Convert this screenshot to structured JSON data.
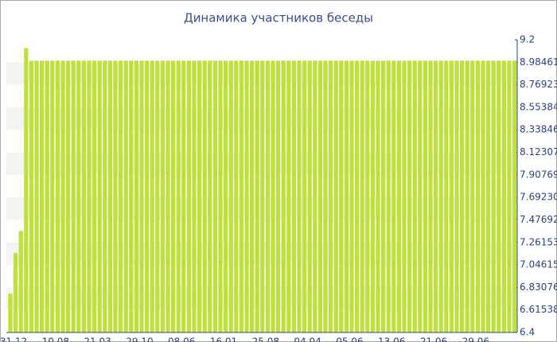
{
  "chart_data": {
    "type": "bar",
    "title": "Динамика участников беседы",
    "categories": [
      "31.12",
      null,
      null,
      null,
      null,
      null,
      null,
      null,
      "10.08",
      null,
      null,
      null,
      null,
      null,
      null,
      null,
      "21.03",
      null,
      null,
      null,
      null,
      null,
      null,
      null,
      "29.10",
      null,
      null,
      null,
      null,
      null,
      null,
      null,
      "08.06",
      null,
      null,
      null,
      null,
      null,
      null,
      null,
      "16.01",
      null,
      null,
      null,
      null,
      null,
      null,
      null,
      "25.08",
      null,
      null,
      null,
      null,
      null,
      null,
      null,
      "04.04",
      null,
      null,
      null,
      null,
      null,
      null,
      null,
      "05.06",
      null,
      null,
      null,
      null,
      null,
      null,
      null,
      "13.06",
      null,
      null,
      null,
      null,
      null,
      null,
      null,
      "21.06",
      null,
      null,
      null,
      null,
      null,
      null,
      null,
      "29.06",
      null,
      null,
      null,
      null,
      null,
      null,
      null,
      null
    ],
    "values": [
      6.77,
      7.16,
      7.37,
      9.12,
      9,
      9,
      9,
      9,
      9,
      9,
      9,
      9,
      9,
      9,
      9,
      9,
      9,
      9,
      9,
      9,
      9,
      9,
      9,
      9,
      9,
      9,
      9,
      9,
      9,
      9,
      9,
      9,
      9,
      9,
      9,
      9,
      9,
      9,
      9,
      9,
      9,
      9,
      9,
      9,
      9,
      9,
      9,
      9,
      9,
      9,
      9,
      9,
      9,
      9,
      9,
      9,
      9,
      9,
      9,
      9,
      9,
      9,
      9,
      9,
      9,
      9,
      9,
      9,
      9,
      9,
      9,
      9,
      9,
      9,
      9,
      9,
      9,
      9,
      9,
      9,
      9,
      9,
      9,
      9,
      9,
      9,
      9,
      9,
      9,
      9,
      9,
      9,
      9,
      9,
      9,
      9,
      9
    ],
    "color": "#bde03a",
    "ylim": [
      6.4,
      9.2
    ],
    "yticks": [
      6.4,
      6.61538,
      6.83076,
      7.04615,
      7.26153,
      7.47692,
      {
        "value": 7.6923,
        "label": "7.69230"
      },
      7.90769,
      8.12307,
      8.33846,
      8.55384,
      8.76923,
      8.98461,
      9.2
    ],
    "y_axis_side": "right",
    "grid": "bands"
  }
}
